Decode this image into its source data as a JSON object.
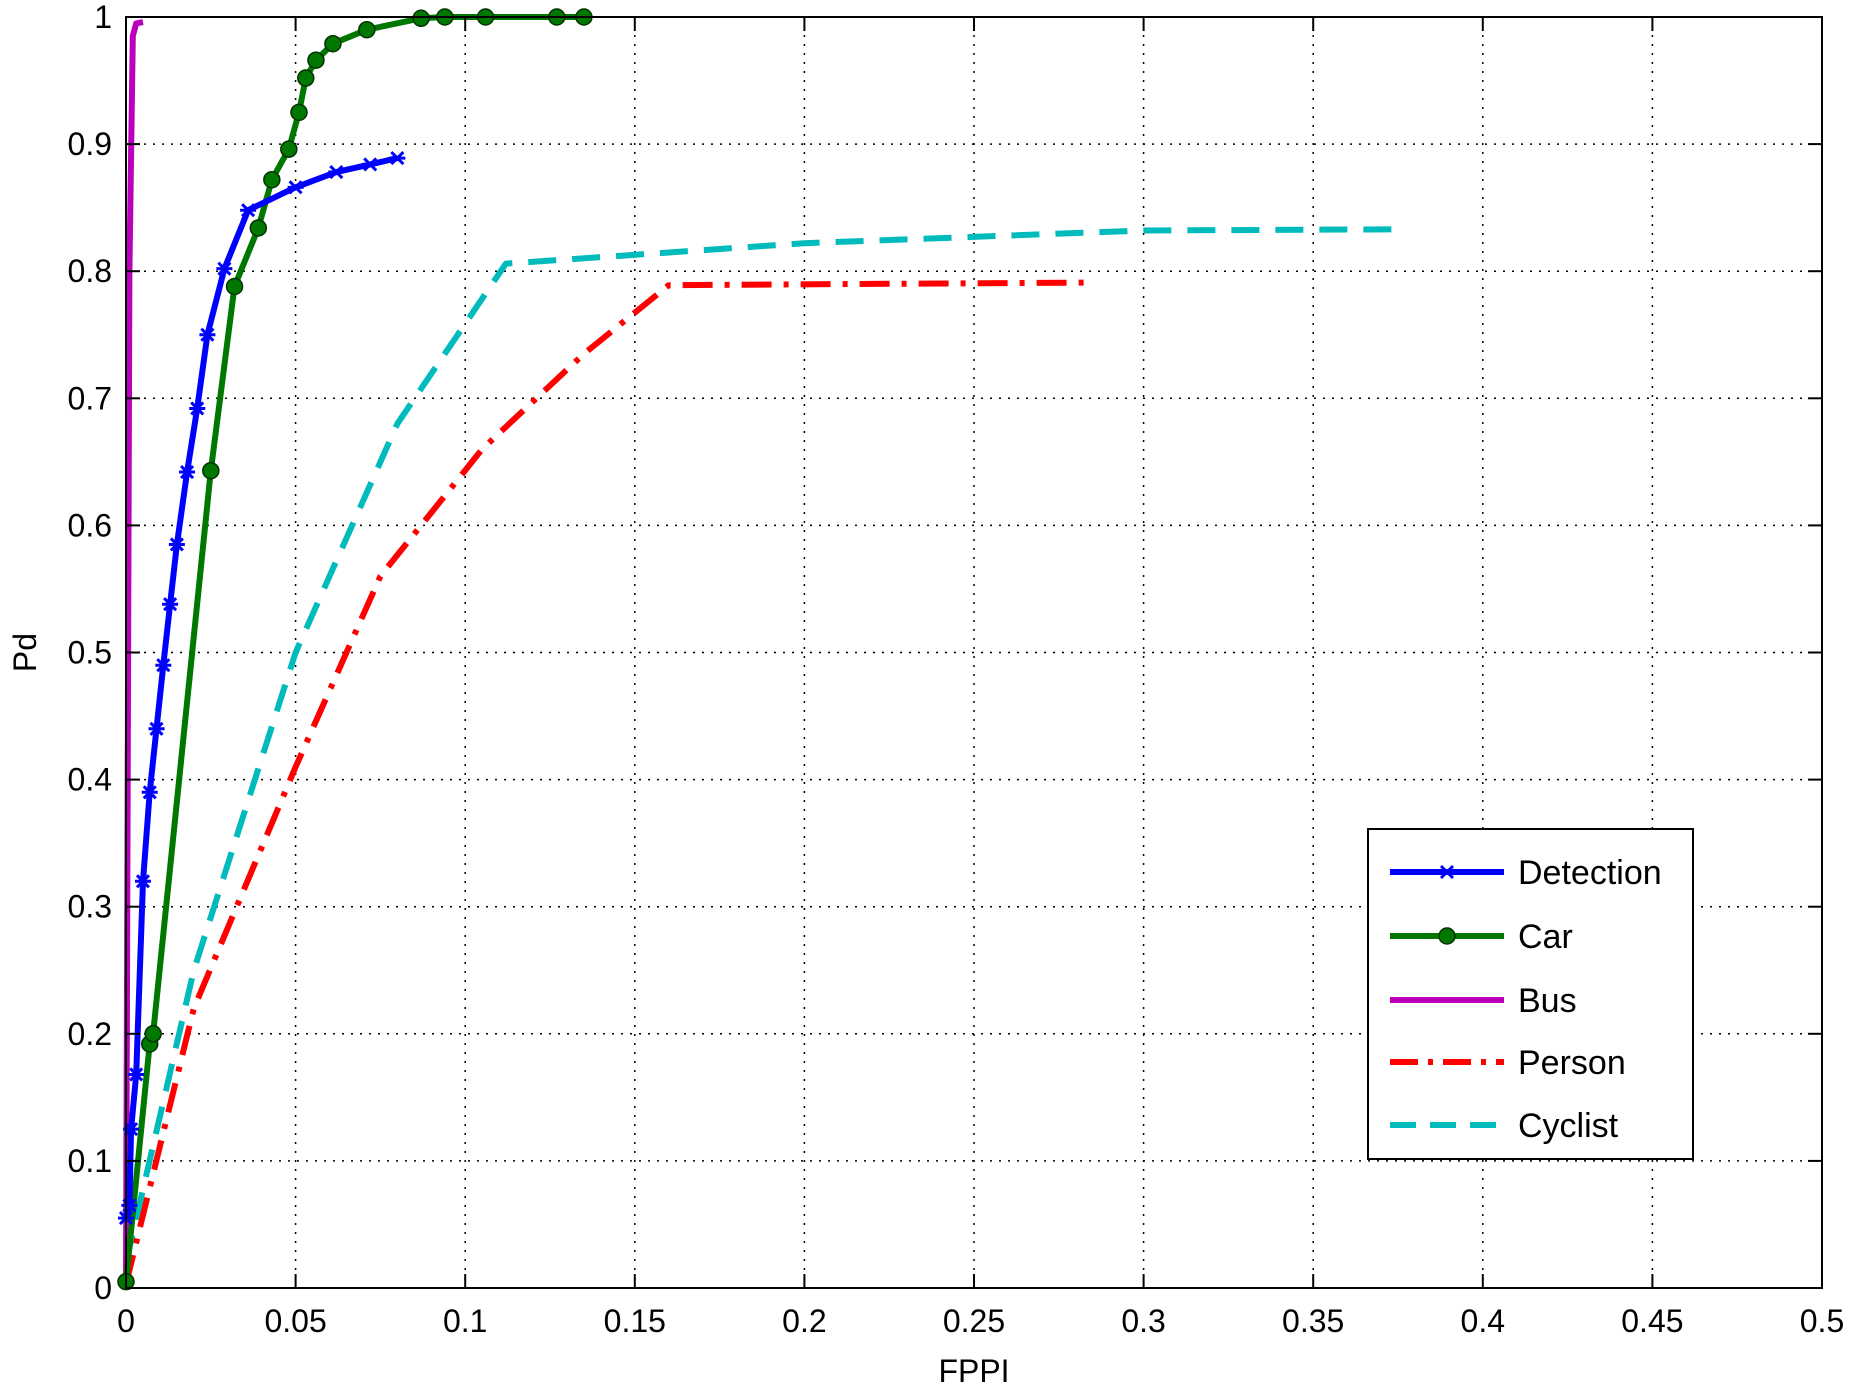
{
  "chart_data": {
    "type": "line",
    "title": "",
    "xlabel": "FPPI",
    "ylabel": "Pd",
    "xlim": [
      0,
      0.5
    ],
    "ylim": [
      0,
      1
    ],
    "grid": true,
    "legend_position": "bottom-right",
    "x_ticks": [
      "0",
      "0.05",
      "0.1",
      "0.15",
      "0.2",
      "0.25",
      "0.3",
      "0.35",
      "0.4",
      "0.45",
      "0.5"
    ],
    "y_ticks": [
      "0",
      "0.1",
      "0.2",
      "0.3",
      "0.4",
      "0.5",
      "0.6",
      "0.7",
      "0.8",
      "0.9",
      "1"
    ],
    "series": [
      {
        "name": "Detection",
        "color": "#0000ff",
        "line_style": "solid",
        "marker": "x-star",
        "points": [
          [
            0,
            0.055
          ],
          [
            0.001,
            0.065
          ],
          [
            0.0015,
            0.125
          ],
          [
            0.003,
            0.168
          ],
          [
            0.005,
            0.32
          ],
          [
            0.007,
            0.39
          ],
          [
            0.009,
            0.44
          ],
          [
            0.011,
            0.49
          ],
          [
            0.013,
            0.538
          ],
          [
            0.015,
            0.585
          ],
          [
            0.018,
            0.642
          ],
          [
            0.021,
            0.692
          ],
          [
            0.024,
            0.75
          ],
          [
            0.029,
            0.802
          ],
          [
            0.036,
            0.848
          ],
          [
            0.05,
            0.866
          ],
          [
            0.062,
            0.878
          ],
          [
            0.072,
            0.884
          ],
          [
            0.08,
            0.889
          ]
        ]
      },
      {
        "name": "Car",
        "color": "#007700",
        "line_style": "solid",
        "marker": "circle",
        "points": [
          [
            0,
            0.005
          ],
          [
            0.007,
            0.192
          ],
          [
            0.008,
            0.2
          ],
          [
            0.025,
            0.643
          ],
          [
            0.032,
            0.788
          ],
          [
            0.039,
            0.834
          ],
          [
            0.043,
            0.872
          ],
          [
            0.048,
            0.896
          ],
          [
            0.051,
            0.925
          ],
          [
            0.053,
            0.952
          ],
          [
            0.056,
            0.966
          ],
          [
            0.061,
            0.979
          ],
          [
            0.071,
            0.99
          ],
          [
            0.087,
            0.999
          ],
          [
            0.094,
            1.0
          ],
          [
            0.106,
            1.0
          ],
          [
            0.127,
            1.0
          ],
          [
            0.135,
            1.0
          ]
        ]
      },
      {
        "name": "Bus",
        "color": "#bb00bb",
        "line_style": "solid",
        "marker": "none",
        "points": [
          [
            0,
            0.003
          ],
          [
            0.001,
            0.8
          ],
          [
            0.002,
            0.985
          ],
          [
            0.003,
            0.995
          ],
          [
            0.005,
            0.996
          ]
        ]
      },
      {
        "name": "Person",
        "color": "#ff0000",
        "line_style": "dashdot",
        "marker": "none",
        "points": [
          [
            0,
            0.003
          ],
          [
            0.02,
            0.22
          ],
          [
            0.05,
            0.41
          ],
          [
            0.075,
            0.56
          ],
          [
            0.105,
            0.66
          ],
          [
            0.135,
            0.735
          ],
          [
            0.16,
            0.789
          ],
          [
            0.22,
            0.79
          ],
          [
            0.285,
            0.791
          ]
        ]
      },
      {
        "name": "Cyclist",
        "color": "#00bbbb",
        "line_style": "dashed",
        "marker": "none",
        "points": [
          [
            0,
            0.02
          ],
          [
            0.02,
            0.25
          ],
          [
            0.05,
            0.5
          ],
          [
            0.08,
            0.68
          ],
          [
            0.112,
            0.806
          ],
          [
            0.2,
            0.822
          ],
          [
            0.3,
            0.832
          ],
          [
            0.375,
            0.833
          ]
        ]
      }
    ]
  }
}
